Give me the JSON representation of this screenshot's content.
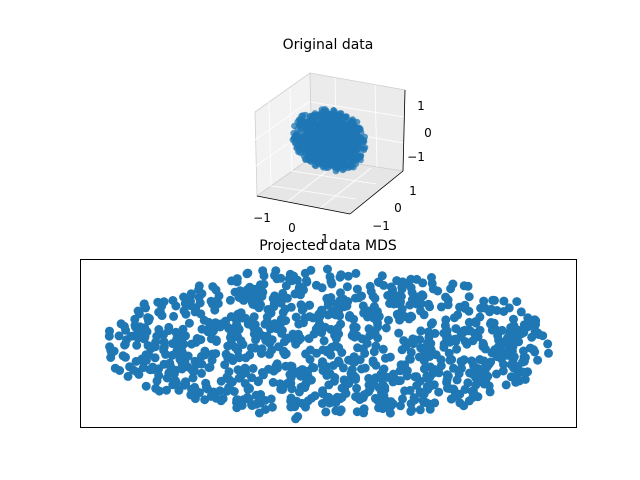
{
  "chart_data": [
    {
      "type": "scatter",
      "projection": "3d",
      "title": "Original data",
      "xlabel": "",
      "ylabel": "",
      "zlabel": "",
      "xticks": [
        "−1",
        "0",
        "1"
      ],
      "yticks": [
        "−1",
        "0",
        "1"
      ],
      "zticks": [
        "−1",
        "0",
        "1"
      ],
      "xlim": [
        -1.5,
        1.5
      ],
      "ylim": [
        -1.5,
        1.5
      ],
      "zlim": [
        -1.5,
        1.5
      ],
      "grid": true,
      "color": "#1f77b4",
      "n_points": 1000,
      "shape": "sphere",
      "radius": 1
    },
    {
      "type": "scatter",
      "title": "Projected data MDS",
      "xlabel": "",
      "ylabel": "",
      "xlim": [
        -2.4,
        2.4
      ],
      "ylim": [
        -1.6,
        1.6
      ],
      "axes_ticks": false,
      "color": "#1f77b4",
      "n_points": 1000,
      "shape": "ellipse",
      "x_range": [
        -2.3,
        2.3
      ],
      "y_range": [
        -1.5,
        1.6
      ]
    }
  ]
}
